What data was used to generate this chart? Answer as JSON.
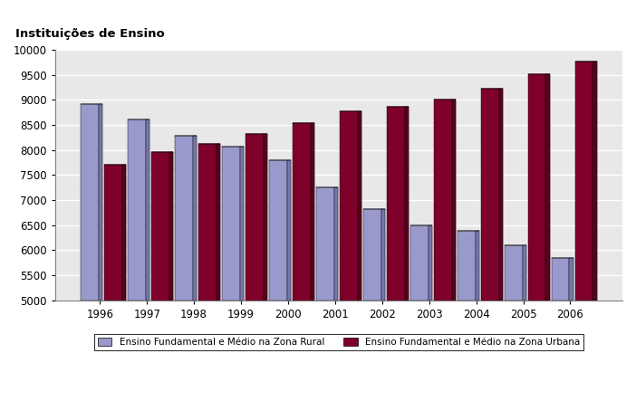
{
  "years": [
    1996,
    1997,
    1998,
    1999,
    2000,
    2001,
    2002,
    2003,
    2004,
    2005,
    2006
  ],
  "rural": [
    8920,
    8600,
    8280,
    8060,
    7800,
    7250,
    6820,
    6500,
    6380,
    6100,
    5850
  ],
  "urban": [
    7700,
    7960,
    8120,
    8320,
    8540,
    8770,
    8860,
    9000,
    9230,
    9510,
    9760
  ],
  "rural_color": "#9999cc",
  "rural_dark": "#7777aa",
  "urban_color": "#7f002a",
  "urban_dark": "#5a0020",
  "ylabel": "Instituições de Ensino",
  "ylim_min": 5000,
  "ylim_max": 10000,
  "yticks": [
    5000,
    5500,
    6000,
    6500,
    7000,
    7500,
    8000,
    8500,
    9000,
    9500,
    10000
  ],
  "legend_rural": "Ensino Fundamental e Médio na Zona Rural",
  "legend_urban": "Ensino Fundamental e Médio na Zona Urbana",
  "bar_width": 0.38,
  "depth": 0.08,
  "plot_bg": "#e8e8e8",
  "grid_color": "#ffffff"
}
